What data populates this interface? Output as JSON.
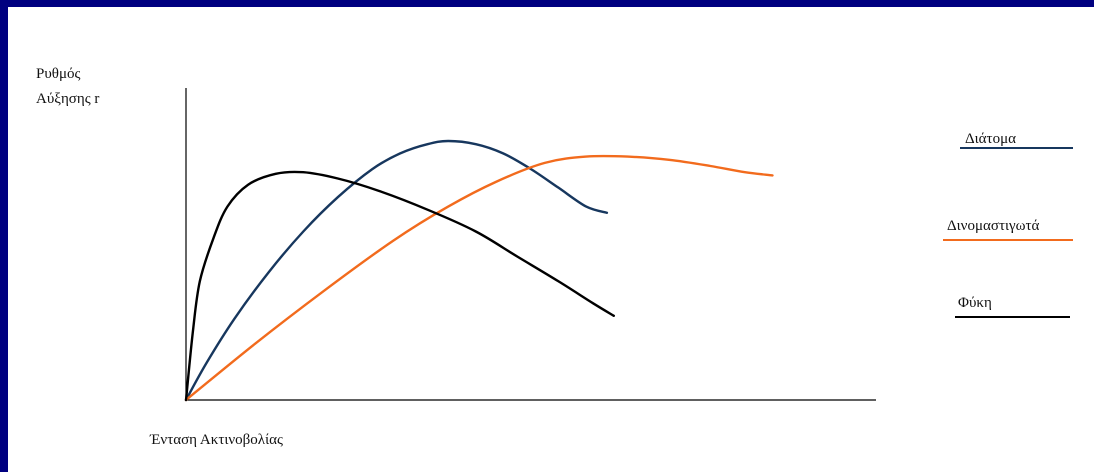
{
  "chart_data": {
    "type": "line",
    "title": "",
    "ylabel": [
      "Ρυθμός",
      "Αύξησης r"
    ],
    "xlabel": "Ένταση Ακτινοβολίας",
    "xlim": [
      0,
      100
    ],
    "ylim": [
      0,
      100
    ],
    "grid": false,
    "legend_position": "right",
    "series": [
      {
        "name": "Διάτομα",
        "color": "#17375e",
        "points": [
          [
            0,
            0
          ],
          [
            3,
            12
          ],
          [
            7,
            26
          ],
          [
            12,
            41
          ],
          [
            17,
            54
          ],
          [
            22,
            65
          ],
          [
            27,
            74
          ],
          [
            31,
            79
          ],
          [
            35,
            82
          ],
          [
            38,
            83
          ],
          [
            42,
            82
          ],
          [
            46,
            79
          ],
          [
            50,
            74
          ],
          [
            54,
            68
          ],
          [
            58,
            62
          ],
          [
            61,
            60
          ]
        ]
      },
      {
        "name": "Δινομαστιγωτά",
        "color": "#f26b1d",
        "points": [
          [
            0,
            0
          ],
          [
            10,
            18
          ],
          [
            20,
            35
          ],
          [
            30,
            51
          ],
          [
            38,
            62
          ],
          [
            45,
            70
          ],
          [
            52,
            76
          ],
          [
            58,
            78
          ],
          [
            64,
            78
          ],
          [
            70,
            77
          ],
          [
            76,
            75
          ],
          [
            81,
            73
          ],
          [
            85,
            72
          ]
        ]
      },
      {
        "name": "Φύκη",
        "color": "#000000",
        "points": [
          [
            0,
            0
          ],
          [
            1,
            22
          ],
          [
            2,
            38
          ],
          [
            4,
            52
          ],
          [
            6,
            62
          ],
          [
            9,
            69
          ],
          [
            13,
            72.5
          ],
          [
            17,
            73
          ],
          [
            22,
            71
          ],
          [
            28,
            67
          ],
          [
            35,
            61
          ],
          [
            42,
            54
          ],
          [
            48,
            46
          ],
          [
            54,
            38
          ],
          [
            59,
            31
          ],
          [
            62,
            27
          ]
        ]
      }
    ]
  }
}
